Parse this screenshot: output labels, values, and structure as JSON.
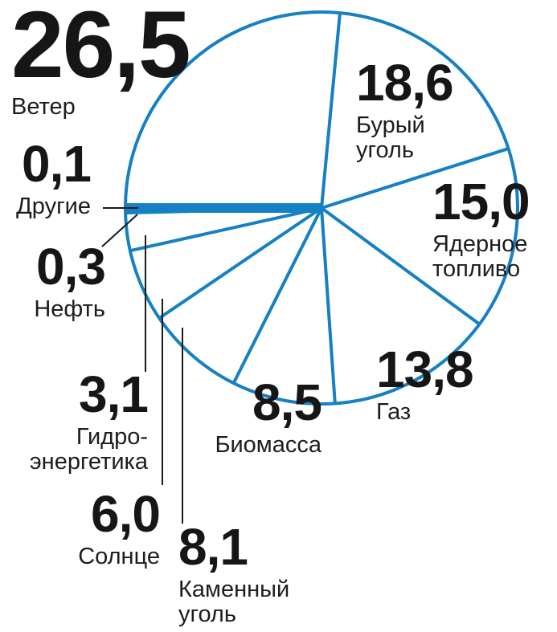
{
  "chart_data": {
    "type": "pie",
    "title": "",
    "style": "outline",
    "legend": "none",
    "labels_position": "around",
    "start_angle_deg": 180,
    "direction": "clockwise",
    "accent_color": "#1580c4",
    "text_color": "#1a1a1a",
    "leader_line_color": "#1a1a1a",
    "slices": [
      {
        "name": "Ветер",
        "value": 26.5,
        "value_label": "26,5",
        "name_lines": [
          "Ветер"
        ]
      },
      {
        "name": "Бурый уголь",
        "value": 18.6,
        "value_label": "18,6",
        "name_lines": [
          "Бурый",
          "уголь"
        ]
      },
      {
        "name": "Ядерное топливо",
        "value": 15.0,
        "value_label": "15,0",
        "name_lines": [
          "Ядерное",
          "топливо"
        ]
      },
      {
        "name": "Газ",
        "value": 13.8,
        "value_label": "13,8",
        "name_lines": [
          "Газ"
        ]
      },
      {
        "name": "Биомасса",
        "value": 8.5,
        "value_label": "8,5",
        "name_lines": [
          "Биомасса"
        ]
      },
      {
        "name": "Каменный уголь",
        "value": 8.1,
        "value_label": "8,1",
        "name_lines": [
          "Каменный",
          "уголь"
        ]
      },
      {
        "name": "Солнце",
        "value": 6.0,
        "value_label": "6,0",
        "name_lines": [
          "Солнце"
        ]
      },
      {
        "name": "Гидроэнергетика",
        "value": 3.1,
        "value_label": "3,1",
        "name_lines": [
          "Гидро-",
          "энергетика"
        ]
      },
      {
        "name": "Нефть",
        "value": 0.3,
        "value_label": "0,3",
        "name_lines": [
          "Нефть"
        ]
      },
      {
        "name": "Другие",
        "value": 0.1,
        "value_label": "0,1",
        "name_lines": [
          "Другие"
        ]
      }
    ]
  }
}
